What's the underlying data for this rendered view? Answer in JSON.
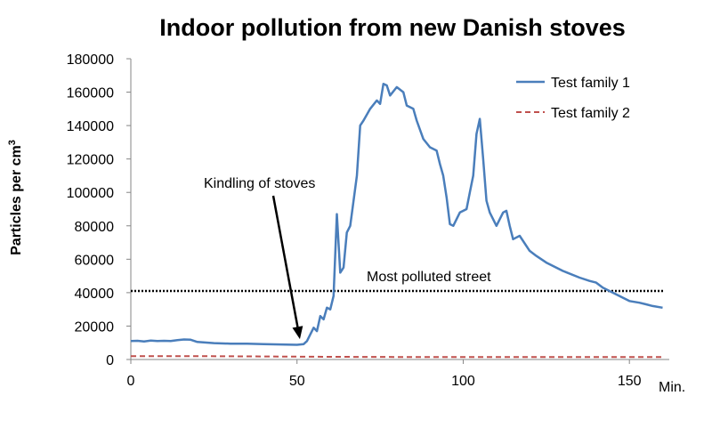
{
  "chart_data": {
    "type": "line",
    "title": "Indoor pollution from new Danish stoves",
    "ylabel": "Particles per cm",
    "ylabel_superscript": "3",
    "xunit_label": "Min.",
    "xlim": [
      0,
      162
    ],
    "ylim": [
      0,
      180000
    ],
    "x_ticks": [
      0,
      50,
      100,
      150
    ],
    "y_ticks": [
      0,
      20000,
      40000,
      60000,
      80000,
      100000,
      120000,
      140000,
      160000,
      180000
    ],
    "grid": false,
    "legend_position": "top-right",
    "series": [
      {
        "name": "Test family 1",
        "color": "#4a7ebb",
        "style": "solid",
        "points": [
          [
            0,
            11000
          ],
          [
            2,
            11200
          ],
          [
            4,
            10800
          ],
          [
            6,
            11300
          ],
          [
            8,
            11000
          ],
          [
            10,
            11200
          ],
          [
            12,
            11100
          ],
          [
            14,
            11600
          ],
          [
            16,
            12000
          ],
          [
            18,
            11800
          ],
          [
            20,
            10500
          ],
          [
            25,
            9800
          ],
          [
            30,
            9500
          ],
          [
            35,
            9400
          ],
          [
            40,
            9200
          ],
          [
            45,
            9000
          ],
          [
            50,
            8800
          ],
          [
            52,
            9200
          ],
          [
            53,
            11000
          ],
          [
            55,
            19000
          ],
          [
            56,
            17000
          ],
          [
            57,
            26000
          ],
          [
            58,
            24000
          ],
          [
            59,
            31000
          ],
          [
            60,
            30000
          ],
          [
            61,
            38000
          ],
          [
            62,
            87000
          ],
          [
            63,
            52000
          ],
          [
            64,
            55000
          ],
          [
            65,
            76000
          ],
          [
            66,
            80000
          ],
          [
            68,
            110000
          ],
          [
            69,
            140000
          ],
          [
            70,
            143000
          ],
          [
            72,
            150000
          ],
          [
            74,
            155000
          ],
          [
            75,
            153000
          ],
          [
            76,
            165000
          ],
          [
            77,
            164000
          ],
          [
            78,
            158000
          ],
          [
            80,
            163000
          ],
          [
            82,
            160000
          ],
          [
            83,
            152000
          ],
          [
            85,
            150000
          ],
          [
            86,
            143000
          ],
          [
            88,
            132000
          ],
          [
            90,
            127000
          ],
          [
            92,
            125000
          ],
          [
            93,
            117000
          ],
          [
            94,
            110000
          ],
          [
            95,
            97000
          ],
          [
            96,
            81000
          ],
          [
            97,
            80000
          ],
          [
            99,
            88000
          ],
          [
            100,
            89000
          ],
          [
            101,
            90000
          ],
          [
            102,
            100000
          ],
          [
            103,
            110000
          ],
          [
            104,
            135000
          ],
          [
            105,
            144000
          ],
          [
            106,
            120000
          ],
          [
            107,
            95000
          ],
          [
            108,
            88000
          ],
          [
            110,
            80000
          ],
          [
            112,
            88000
          ],
          [
            113,
            89000
          ],
          [
            114,
            80000
          ],
          [
            115,
            72000
          ],
          [
            117,
            74000
          ],
          [
            120,
            65000
          ],
          [
            122,
            62000
          ],
          [
            125,
            58000
          ],
          [
            130,
            53000
          ],
          [
            135,
            49000
          ],
          [
            138,
            47000
          ],
          [
            140,
            46000
          ],
          [
            142,
            43000
          ],
          [
            145,
            40000
          ],
          [
            148,
            37000
          ],
          [
            150,
            35000
          ],
          [
            153,
            34000
          ],
          [
            155,
            33000
          ],
          [
            157,
            32000
          ],
          [
            160,
            31000
          ]
        ]
      },
      {
        "name": "Test family 2",
        "color": "#c0504d",
        "style": "dashed",
        "points": [
          [
            0,
            2000
          ],
          [
            20,
            2000
          ],
          [
            40,
            1800
          ],
          [
            60,
            1600
          ],
          [
            80,
            1500
          ],
          [
            100,
            1500
          ],
          [
            120,
            1500
          ],
          [
            140,
            1500
          ],
          [
            160,
            1500
          ]
        ]
      }
    ],
    "reference_line": {
      "label": "Most polluted street",
      "value": 41000,
      "color": "#000000",
      "style": "dotted"
    },
    "annotations": [
      {
        "text": "Kindling of stoves",
        "arrow_to": [
          51,
          9000
        ]
      }
    ]
  }
}
